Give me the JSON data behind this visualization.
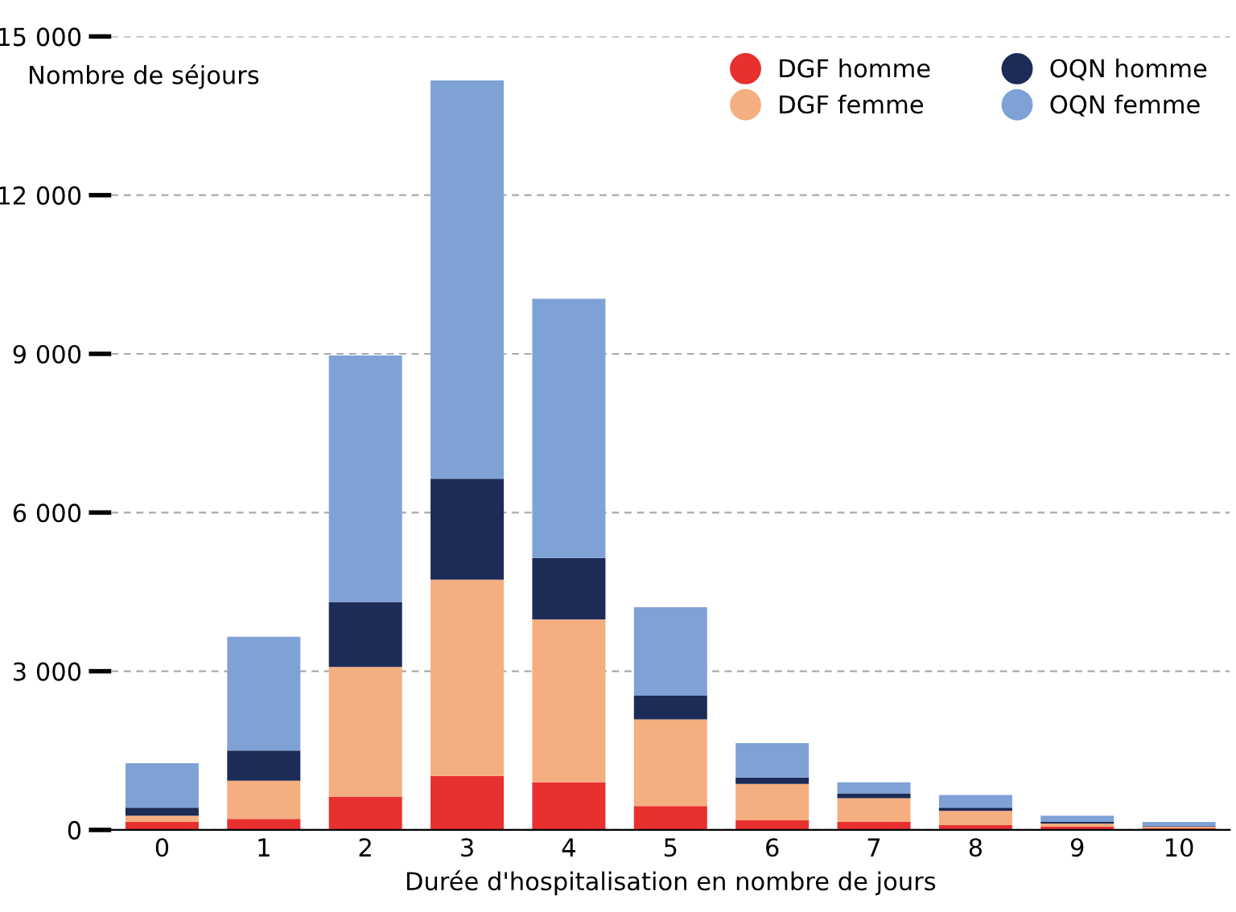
{
  "chart_data": {
    "type": "bar",
    "stacked": true,
    "xlabel": "Durée d'hospitalisation en nombre de jours",
    "ylabel": "Nombre de séjours",
    "categories": [
      "0",
      "1",
      "2",
      "3",
      "4",
      "5",
      "6",
      "7",
      "8",
      "9",
      "10"
    ],
    "series": [
      {
        "name": "DGF homme",
        "color": "#e8302f",
        "values": [
          150,
          210,
          630,
          1020,
          900,
          450,
          180,
          150,
          90,
          60,
          30
        ]
      },
      {
        "name": "DGF femme",
        "color": "#f5ae80",
        "values": [
          120,
          720,
          2450,
          3710,
          3080,
          1640,
          690,
          450,
          270,
          60,
          30
        ]
      },
      {
        "name": "OQN homme",
        "color": "#1d2b57",
        "values": [
          150,
          570,
          1230,
          1910,
          1160,
          450,
          120,
          90,
          60,
          30,
          10
        ]
      },
      {
        "name": "OQN femme",
        "color": "#7fa2d6",
        "values": [
          840,
          2150,
          4660,
          7530,
          4900,
          1670,
          650,
          210,
          240,
          120,
          80
        ]
      }
    ],
    "ylim": [
      0,
      15000
    ],
    "yticks": [
      0,
      {
        "value": 3000,
        "label": "3 000"
      },
      {
        "value": 6000,
        "label": "6 000"
      },
      {
        "value": 9000,
        "label": "9 000"
      },
      {
        "value": 12000,
        "label": "12 000"
      },
      {
        "value": 15000,
        "label": "15 000"
      }
    ],
    "grid": "y",
    "legend": "top right"
  }
}
